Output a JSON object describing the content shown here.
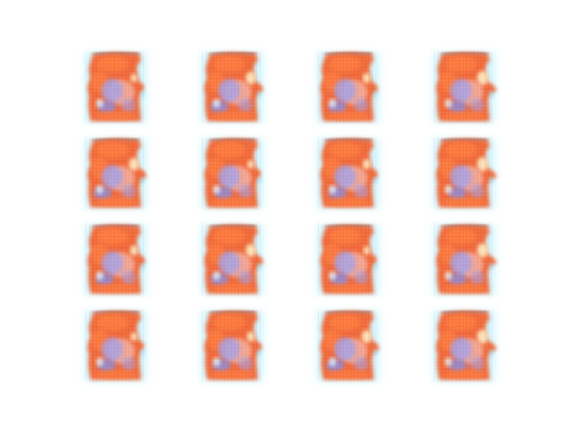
{
  "figure": {
    "layout": {
      "rows": 4,
      "cols": 4
    },
    "background_color": "#ffffff",
    "palette": {
      "orange_bright": "#ff7d3f",
      "orange_mid": "#f26a3a",
      "orange_dark": "#c9583a",
      "edge_dark": "#8a4a40",
      "pink": "#f5b6a8",
      "cream": "#fff1c8",
      "lavender": "#a9a3e6",
      "blue_violet": "#8b8ee0",
      "cyan_fringe": "#9fe9ff",
      "cyan_light": "#d6f8ff"
    },
    "tiles": [
      {
        "variant": 0
      },
      {
        "variant": 1
      },
      {
        "variant": 2
      },
      {
        "variant": 3
      },
      {
        "variant": 1
      },
      {
        "variant": 0
      },
      {
        "variant": 2
      },
      {
        "variant": 3
      },
      {
        "variant": 2
      },
      {
        "variant": 1
      },
      {
        "variant": 0
      },
      {
        "variant": 3
      },
      {
        "variant": 0
      },
      {
        "variant": 2
      },
      {
        "variant": 1
      },
      {
        "variant": 3
      }
    ]
  }
}
